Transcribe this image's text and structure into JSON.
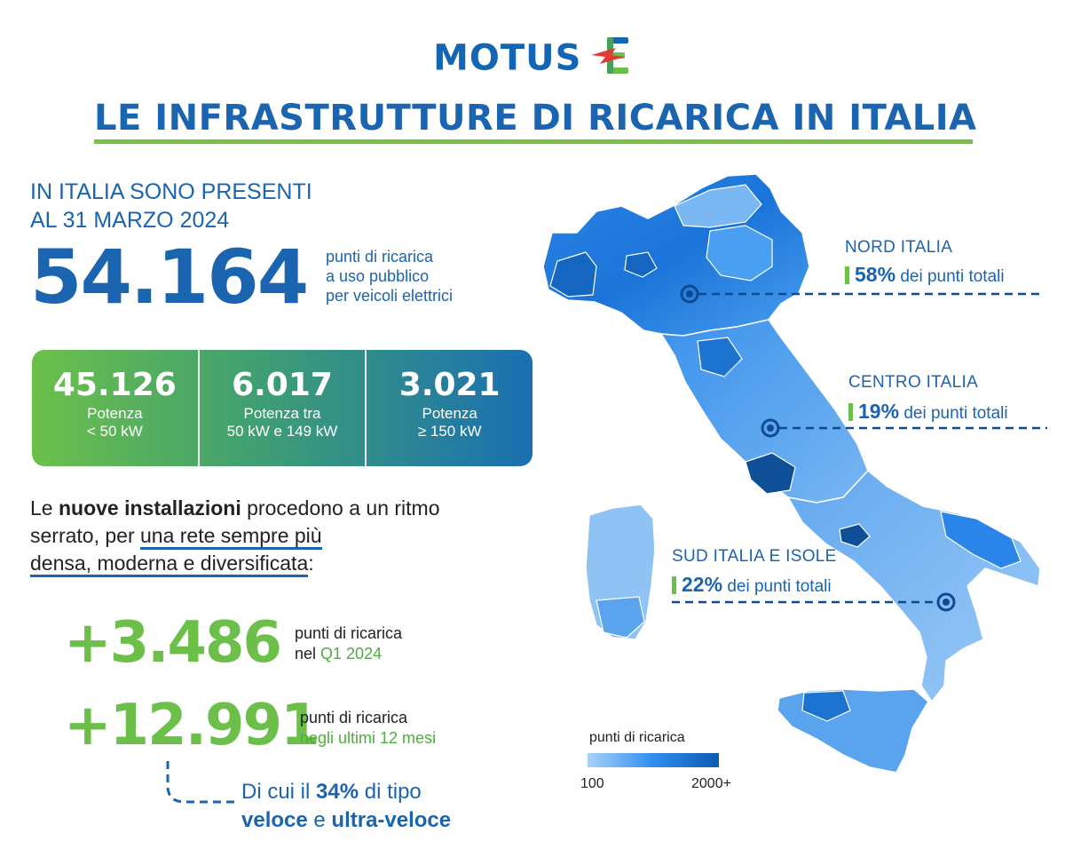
{
  "logo": {
    "word": "MOTUS",
    "letter": "E"
  },
  "title": "LE INFRASTRUTTURE DI RICARICA IN ITALIA",
  "intro": {
    "line1": "IN ITALIA SONO PRESENTI",
    "line2": "AL 31 MARZO 2024",
    "number": "54.164",
    "desc1": "punti di ricarica",
    "desc2": "a uso pubblico",
    "desc3": "per veicoli elettrici"
  },
  "power": [
    {
      "value": "45.126",
      "label1": "Potenza",
      "label2": "< 50 kW"
    },
    {
      "value": "6.017",
      "label1": "Potenza tra",
      "label2": "50 kW e 149 kW"
    },
    {
      "value": "3.021",
      "label1": "Potenza",
      "label2": "≥ 150 kW"
    }
  ],
  "paragraph": {
    "p1": "Le ",
    "b1": "nuove installazioni",
    "p2": " procedono a un ritmo serrato, per ",
    "u1": "una rete sempre più",
    "u2": "densa, moderna e diversificata",
    "p3": ":"
  },
  "stats": [
    {
      "value": "+3.486",
      "line1": "punti di ricarica",
      "line2_prefix": "nel ",
      "line2_green": "Q1 2024"
    },
    {
      "value": "+12.991",
      "line1": "punti di ricarica",
      "line2_prefix": "",
      "line2_green": "negli ultimi 12 mesi"
    }
  ],
  "detail": {
    "p1": "Di cui il ",
    "pct": "34%",
    "p2": " di tipo",
    "b1": "veloce",
    "p3": " e ",
    "b2": "ultra-veloce"
  },
  "regions": [
    {
      "name": "NORD ITALIA",
      "pct": "58%",
      "suffix": " dei punti totali"
    },
    {
      "name": "CENTRO ITALIA",
      "pct": "19%",
      "suffix": " dei punti totali"
    },
    {
      "name": "SUD ITALIA E ISOLE",
      "pct": "22%",
      "suffix": " dei punti totali"
    }
  ],
  "legend": {
    "title": "punti di ricarica",
    "min": "100",
    "max": "2000+"
  },
  "colors": {
    "primary_blue": "#1b64b0",
    "green": "#6cc04a",
    "accent_red": "#e53935"
  }
}
